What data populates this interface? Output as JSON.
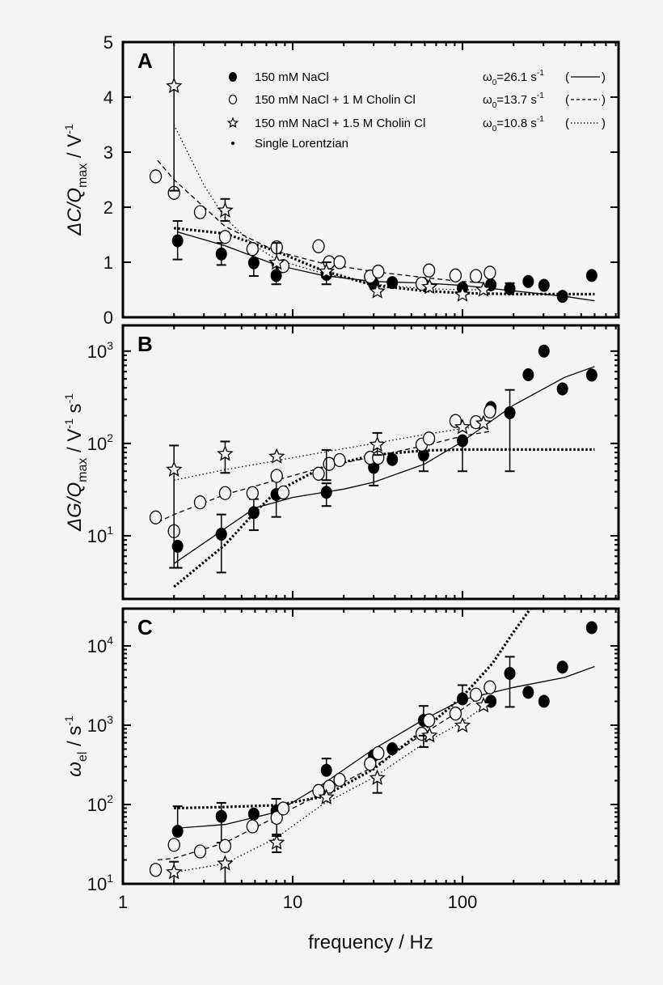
{
  "colors": {
    "background": "#f4f4f4",
    "ink": "#000000"
  },
  "chart_data": [
    {
      "panel": "A",
      "type": "scatter",
      "x_scale": "log",
      "xlim": [
        1,
        830
      ],
      "y_scale": "linear",
      "ylim": [
        0,
        5
      ],
      "ylabel": {
        "main": "ΔC/Q",
        "sub": "max",
        "tail": " / V",
        "sup": "-1"
      },
      "y_ticks": [
        {
          "v": 0,
          "label": "0"
        },
        {
          "v": 1,
          "label": "1"
        },
        {
          "v": 2,
          "label": "2"
        },
        {
          "v": 3,
          "label": "3"
        },
        {
          "v": 4,
          "label": "4"
        },
        {
          "v": 5,
          "label": "5"
        }
      ],
      "legend": {
        "placement": "top",
        "entries": [
          {
            "marker": "filled-circle",
            "label": "150 mM NaCl",
            "omega_symbol": "ω",
            "omega_sub": "0",
            "omega_value": "=26.1 s",
            "omega_sup": "-1",
            "line_style": "solid"
          },
          {
            "marker": "open-circle",
            "label": "150 mM NaCl + 1 M Cholin Cl",
            "omega_symbol": "ω",
            "omega_sub": "0",
            "omega_value": "=13.7 s",
            "omega_sup": "-1",
            "line_style": "dashed"
          },
          {
            "marker": "star",
            "label": "150 mM NaCl + 1.5 M Cholin Cl",
            "omega_symbol": "ω",
            "omega_sub": "0",
            "omega_value": "=10.8 s",
            "omega_sup": "-1",
            "line_style": "dotted"
          },
          {
            "marker": "small-dot",
            "label": "Single Lorentzian"
          }
        ]
      },
      "series": [
        {
          "marker": "filled-circle",
          "x": [
            2.1,
            3.8,
            5.9,
            8.0,
            15.8,
            30,
            38.6,
            59,
            100,
            147,
            190,
            244,
            302,
            388,
            577
          ],
          "y": [
            1.39,
            1.15,
            0.99,
            0.76,
            0.78,
            0.61,
            0.63,
            0.6,
            0.53,
            0.59,
            0.52,
            0.65,
            0.58,
            0.38,
            0.76
          ],
          "errors": [
            [
              2.1,
              1.05,
              1.75
            ],
            [
              3.8,
              0.95,
              1.35
            ],
            [
              5.9,
              0.75,
              1.2
            ],
            [
              8.0,
              0.6,
              0.95
            ],
            [
              190,
              0.5,
              0.62
            ]
          ]
        },
        {
          "marker": "open-circle",
          "x": [
            1.56,
            2.0,
            2.85,
            4.0,
            5.8,
            8.05,
            8.8,
            14.2,
            16.4,
            18.9,
            28.6,
            31.9,
            57.5,
            63.5,
            91,
            120,
            145
          ],
          "y": [
            2.56,
            2.26,
            1.91,
            1.46,
            1.24,
            1.27,
            0.93,
            1.29,
            1.0,
            1.0,
            0.74,
            0.83,
            0.61,
            0.85,
            0.76,
            0.75,
            0.81
          ],
          "errors": []
        },
        {
          "marker": "star",
          "x": [
            2.0,
            4.0,
            8.05,
            15.8,
            31.5,
            64,
            100,
            133
          ],
          "y": [
            4.2,
            1.94,
            0.99,
            0.83,
            0.47,
            0.55,
            0.41,
            0.5
          ],
          "errors": [
            [
              2.0,
              2.3,
              5.0
            ],
            [
              4.0,
              1.75,
              2.15
            ],
            [
              8.05,
              0.8,
              1.35
            ],
            [
              15.8,
              0.6,
              1.0
            ]
          ]
        }
      ],
      "fits": [
        {
          "style": "solid",
          "x": [
            2.1,
            4,
            8,
            15,
            30,
            60,
            100,
            200,
            400,
            600
          ],
          "y": [
            1.55,
            1.3,
            0.95,
            0.76,
            0.65,
            0.62,
            0.58,
            0.48,
            0.38,
            0.3
          ]
        },
        {
          "style": "dashed",
          "x": [
            1.6,
            2,
            4,
            8,
            15,
            30,
            60,
            100,
            145
          ],
          "y": [
            2.85,
            2.5,
            1.65,
            1.2,
            0.98,
            0.83,
            0.72,
            0.65,
            0.62
          ]
        },
        {
          "style": "dotted",
          "x": [
            2,
            3,
            4,
            6,
            8,
            15,
            30,
            60,
            100,
            133
          ],
          "y": [
            3.5,
            2.4,
            1.8,
            1.3,
            1.05,
            0.8,
            0.6,
            0.52,
            0.5,
            0.5
          ]
        },
        {
          "style": "thick-dotted",
          "x": [
            2,
            4,
            8,
            15,
            30,
            60,
            100,
            200,
            600
          ],
          "y": [
            1.62,
            1.52,
            1.2,
            0.85,
            0.58,
            0.48,
            0.44,
            0.42,
            0.42
          ]
        }
      ]
    },
    {
      "panel": "B",
      "type": "scatter",
      "x_scale": "log",
      "xlim": [
        1,
        830
      ],
      "y_scale": "log",
      "ylim": [
        2.07,
        1900
      ],
      "ylabel": {
        "main": "ΔG/Q",
        "sub": "max",
        "tail": " / V",
        "sup": "-1",
        "tail2": " s",
        "sup2": "-1"
      },
      "y_ticks": [
        {
          "v": 10,
          "base": "10",
          "exp": "1"
        },
        {
          "v": 100,
          "base": "10",
          "exp": "2"
        },
        {
          "v": 1000,
          "base": "10",
          "exp": "3"
        }
      ],
      "series": [
        {
          "marker": "filled-circle",
          "x": [
            2.1,
            3.8,
            5.9,
            8.0,
            15.8,
            30,
            38.6,
            59,
            100,
            147,
            190,
            244,
            302,
            388,
            577
          ],
          "y": [
            7.7,
            10.4,
            17.8,
            28,
            29.6,
            55,
            67,
            75,
            107,
            245,
            215,
            555,
            1000,
            390,
            550
          ],
          "errors": [
            [
              2.1,
              4.5,
              8
            ],
            [
              3.8,
              4,
              17
            ],
            [
              5.9,
              11.5,
              25
            ],
            [
              8.0,
              16,
              40
            ],
            [
              15.8,
              21,
              37
            ],
            [
              30,
              35,
              55
            ],
            [
              59,
              50,
              75
            ],
            [
              100,
              50,
              107
            ],
            [
              190,
              50,
              380
            ]
          ]
        },
        {
          "marker": "open-circle",
          "x": [
            1.56,
            2.0,
            2.85,
            4.0,
            5.8,
            8.05,
            8.8,
            14.2,
            16.4,
            18.9,
            28.6,
            31.9,
            57.5,
            63.5,
            91,
            120,
            145
          ],
          "y": [
            15.8,
            11.2,
            23,
            29,
            29,
            44.5,
            29.5,
            47,
            60,
            66,
            70,
            70,
            97,
            113,
            175,
            170,
            222
          ],
          "errors": []
        },
        {
          "marker": "star",
          "x": [
            2.0,
            4.0,
            8.05,
            31.5,
            100,
            133
          ],
          "y": [
            52,
            77,
            72,
            97,
            150,
            165
          ],
          "errors": [
            [
              2.0,
              4.5,
              95
            ],
            [
              4.0,
              48,
              105
            ],
            [
              15.8,
              40,
              85
            ],
            [
              31.5,
              75,
              130
            ]
          ]
        }
      ],
      "fits": [
        {
          "style": "solid",
          "x": [
            2,
            4,
            6,
            10,
            20,
            30,
            60,
            100,
            200,
            400,
            600
          ],
          "y": [
            5,
            12,
            20,
            26,
            32,
            38,
            60,
            105,
            260,
            520,
            680
          ]
        },
        {
          "style": "dashed",
          "x": [
            1.6,
            2,
            4,
            8,
            15,
            30,
            60,
            100,
            145
          ],
          "y": [
            14,
            17,
            28,
            40,
            55,
            72,
            95,
            120,
            135
          ]
        },
        {
          "style": "dotted",
          "x": [
            2,
            4,
            8,
            15,
            30,
            60,
            100,
            133
          ],
          "y": [
            40,
            52,
            65,
            80,
            100,
            125,
            145,
            155
          ]
        },
        {
          "style": "thick-dotted",
          "x": [
            2,
            4,
            6,
            8,
            15,
            30,
            60,
            100,
            600
          ],
          "y": [
            2.8,
            8,
            18,
            30,
            55,
            75,
            84,
            86,
            86
          ]
        }
      ]
    },
    {
      "panel": "C",
      "type": "scatter",
      "x_scale": "log",
      "xlim": [
        1,
        830
      ],
      "y_scale": "log",
      "ylim": [
        10,
        29500
      ],
      "xlabel": "frequency / Hz",
      "x_ticks": [
        {
          "v": 1,
          "label": "1"
        },
        {
          "v": 10,
          "label": "10"
        },
        {
          "v": 100,
          "label": "100"
        }
      ],
      "ylabel": {
        "main": "ω",
        "sub": "el",
        "tail": " / s",
        "sup": "-1"
      },
      "y_ticks": [
        {
          "v": 10,
          "base": "10",
          "exp": "1"
        },
        {
          "v": 100,
          "base": "10",
          "exp": "2"
        },
        {
          "v": 1000,
          "base": "10",
          "exp": "3"
        },
        {
          "v": 10000,
          "base": "10",
          "exp": "4"
        }
      ],
      "series": [
        {
          "marker": "filled-circle",
          "x": [
            2.1,
            3.8,
            5.9,
            8.0,
            15.8,
            30,
            38.6,
            59,
            100,
            147,
            190,
            244,
            302,
            388,
            577
          ],
          "y": [
            46,
            71,
            76,
            83,
            270,
            415,
            505,
            1150,
            2150,
            2000,
            4500,
            2600,
            2000,
            5400,
            17000
          ],
          "errors": [
            [
              2.1,
              47,
              95
            ],
            [
              3.8,
              33,
              105
            ],
            [
              8.0,
              60,
              118
            ],
            [
              15.8,
              270,
              380
            ],
            [
              59,
              1150,
              1750
            ],
            [
              100,
              2150,
              3200
            ],
            [
              190,
              1700,
              7300
            ]
          ]
        },
        {
          "marker": "open-circle",
          "x": [
            1.56,
            2.0,
            2.85,
            4.0,
            5.8,
            8.05,
            8.8,
            14.2,
            16.4,
            18.9,
            28.6,
            31.9,
            57.5,
            63.5,
            91,
            120,
            145
          ],
          "y": [
            15,
            31,
            25.6,
            30,
            53,
            68,
            89,
            148,
            168,
            205,
            327,
            445,
            780,
            1150,
            1400,
            2430,
            3000
          ],
          "errors": [
            [
              8.05,
              40,
              90
            ]
          ]
        },
        {
          "marker": "star",
          "x": [
            2.0,
            4.0,
            8.05,
            15.8,
            31.5,
            64,
            100,
            133
          ],
          "y": [
            14,
            18,
            33,
            123,
            216,
            740,
            990,
            1770
          ],
          "errors": [
            [
              2.0,
              9,
              19
            ],
            [
              4.0,
              8,
              18
            ],
            [
              8.05,
              25,
              42
            ],
            [
              31.5,
              140,
              216
            ],
            [
              59,
              530,
              740
            ]
          ]
        }
      ],
      "fits": [
        {
          "style": "solid",
          "x": [
            2,
            4,
            8,
            15,
            30,
            60,
            100,
            200,
            400,
            600
          ],
          "y": [
            50,
            56,
            80,
            180,
            500,
            1200,
            2100,
            3000,
            4000,
            5500
          ]
        },
        {
          "style": "dashed",
          "x": [
            1.6,
            2,
            4,
            8,
            15,
            30,
            60,
            100,
            145
          ],
          "y": [
            20,
            21,
            33,
            70,
            140,
            300,
            800,
            1600,
            2800
          ]
        },
        {
          "style": "dotted",
          "x": [
            2,
            4,
            8,
            15,
            30,
            60,
            100,
            133
          ],
          "y": [
            14,
            18,
            38,
            100,
            220,
            600,
            1100,
            1700
          ]
        },
        {
          "style": "thick-dotted",
          "x": [
            2,
            4,
            8,
            15,
            30,
            60,
            100,
            150,
            200,
            250
          ],
          "y": [
            90,
            93,
            98,
            125,
            280,
            900,
            2300,
            6000,
            15000,
            29000
          ]
        }
      ]
    }
  ]
}
